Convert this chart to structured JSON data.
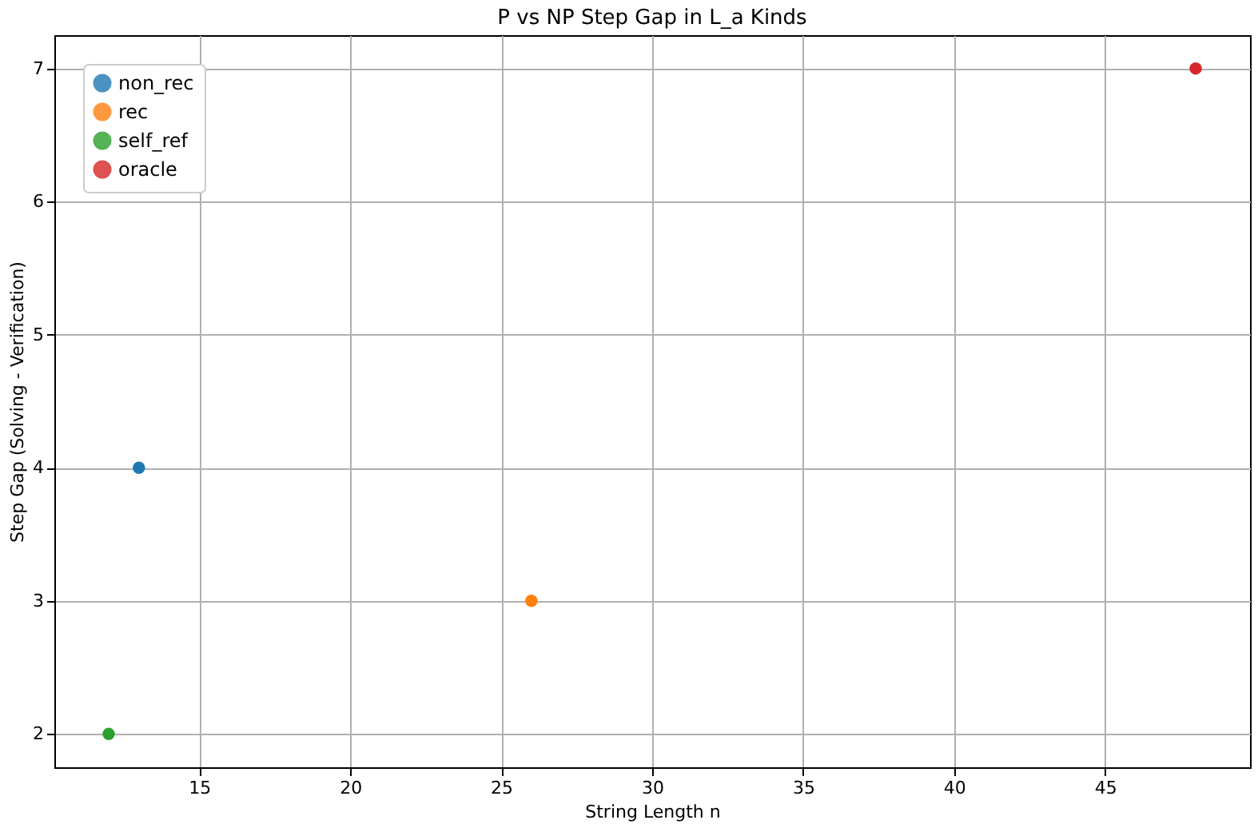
{
  "chart_data": {
    "type": "line",
    "title": "P vs NP Step Gap in L_a Kinds",
    "xlabel": "String Length n",
    "ylabel": "Step Gap (Solving - Verification)",
    "series": [
      {
        "name": "non_rec",
        "color": "#1f77b4",
        "x": [
          13
        ],
        "values": [
          4
        ]
      },
      {
        "name": "rec",
        "color": "#ff7f0e",
        "x": [
          26
        ],
        "values": [
          3
        ]
      },
      {
        "name": "self_ref",
        "color": "#2ca02c",
        "x": [
          12
        ],
        "values": [
          2
        ]
      },
      {
        "name": "oracle",
        "color": "#d62728",
        "x": [
          48
        ],
        "values": [
          7
        ]
      }
    ],
    "xlim": [
      10.2,
      49.8
    ],
    "ylim": [
      1.75,
      7.25
    ],
    "xticks": [
      15,
      20,
      25,
      30,
      35,
      40,
      45
    ],
    "yticks": [
      2,
      3,
      4,
      5,
      6,
      7
    ],
    "grid": true,
    "legend": "top left",
    "marker": "circle"
  }
}
